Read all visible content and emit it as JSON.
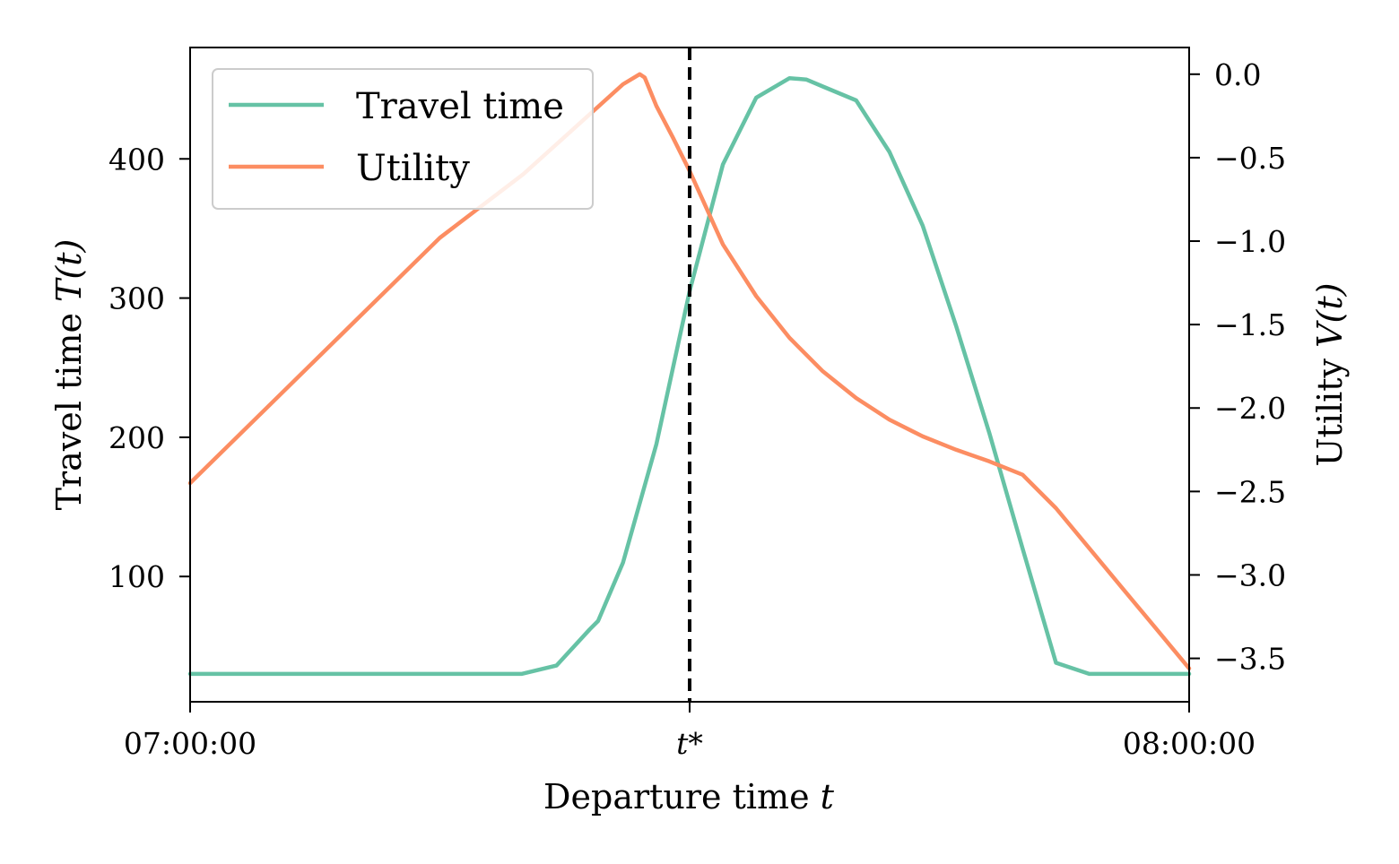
{
  "chart_data": {
    "type": "line",
    "xlabel_text": "Departure time ",
    "xlabel_var": "t",
    "y1label_text": "Travel time ",
    "y1label_var": "T(t)",
    "y2label_text": "Utility ",
    "y2label_var": "V(t)",
    "x_range_minutes": [
      0,
      60
    ],
    "x_ticks": [
      {
        "value": 0,
        "label": "07:00:00"
      },
      {
        "value": 30,
        "label": "t*"
      },
      {
        "value": 60,
        "label": "08:00:00"
      }
    ],
    "y1_range": [
      10,
      480
    ],
    "y1_ticks": [
      {
        "value": 100,
        "label": "100"
      },
      {
        "value": 200,
        "label": "200"
      },
      {
        "value": 300,
        "label": "300"
      },
      {
        "value": 400,
        "label": "400"
      }
    ],
    "y2_range": [
      -3.76,
      0.16
    ],
    "y2_ticks": [
      {
        "value": 0.0,
        "label": "0.0"
      },
      {
        "value": -0.5,
        "label": "−0.5"
      },
      {
        "value": -1.0,
        "label": "−1.0"
      },
      {
        "value": -1.5,
        "label": "−1.5"
      },
      {
        "value": -2.0,
        "label": "−2.0"
      },
      {
        "value": -2.5,
        "label": "−2.5"
      },
      {
        "value": -3.0,
        "label": "−3.0"
      },
      {
        "value": -3.5,
        "label": "−3.5"
      }
    ],
    "vline_at": 30,
    "legend_position": "top-left",
    "grid": false,
    "series": [
      {
        "name": "Travel time",
        "axis": "left",
        "color": "#66c2a5",
        "x": [
          0,
          5,
          10,
          15,
          19.9,
          22,
          24,
          24.5,
          26,
          28,
          30,
          32,
          34,
          36,
          37,
          38,
          40,
          42,
          44,
          46,
          48,
          50,
          52,
          54,
          56,
          58,
          60
        ],
        "y": [
          30,
          30,
          30,
          30,
          30,
          36,
          62,
          68,
          110,
          195,
          305,
          396,
          444,
          458,
          457,
          452,
          442,
          405,
          352,
          280,
          203,
          120,
          38,
          30,
          30,
          30,
          30
        ]
      },
      {
        "name": "Utility",
        "axis": "right",
        "color": "#fc8d62",
        "x": [
          0,
          5,
          10,
          15,
          20,
          24,
          26,
          27,
          27.3,
          28,
          29,
          30,
          32,
          34,
          36,
          38,
          40,
          42,
          44,
          46,
          48,
          50,
          52,
          54,
          56,
          58,
          60
        ],
        "y": [
          -2.45,
          -1.96,
          -1.47,
          -0.98,
          -0.6,
          -0.24,
          -0.06,
          0.0,
          -0.02,
          -0.19,
          -0.38,
          -0.58,
          -1.02,
          -1.33,
          -1.58,
          -1.78,
          -1.94,
          -2.07,
          -2.17,
          -2.25,
          -2.32,
          -2.4,
          -2.6,
          -2.84,
          -3.08,
          -3.32,
          -3.56
        ]
      }
    ]
  }
}
